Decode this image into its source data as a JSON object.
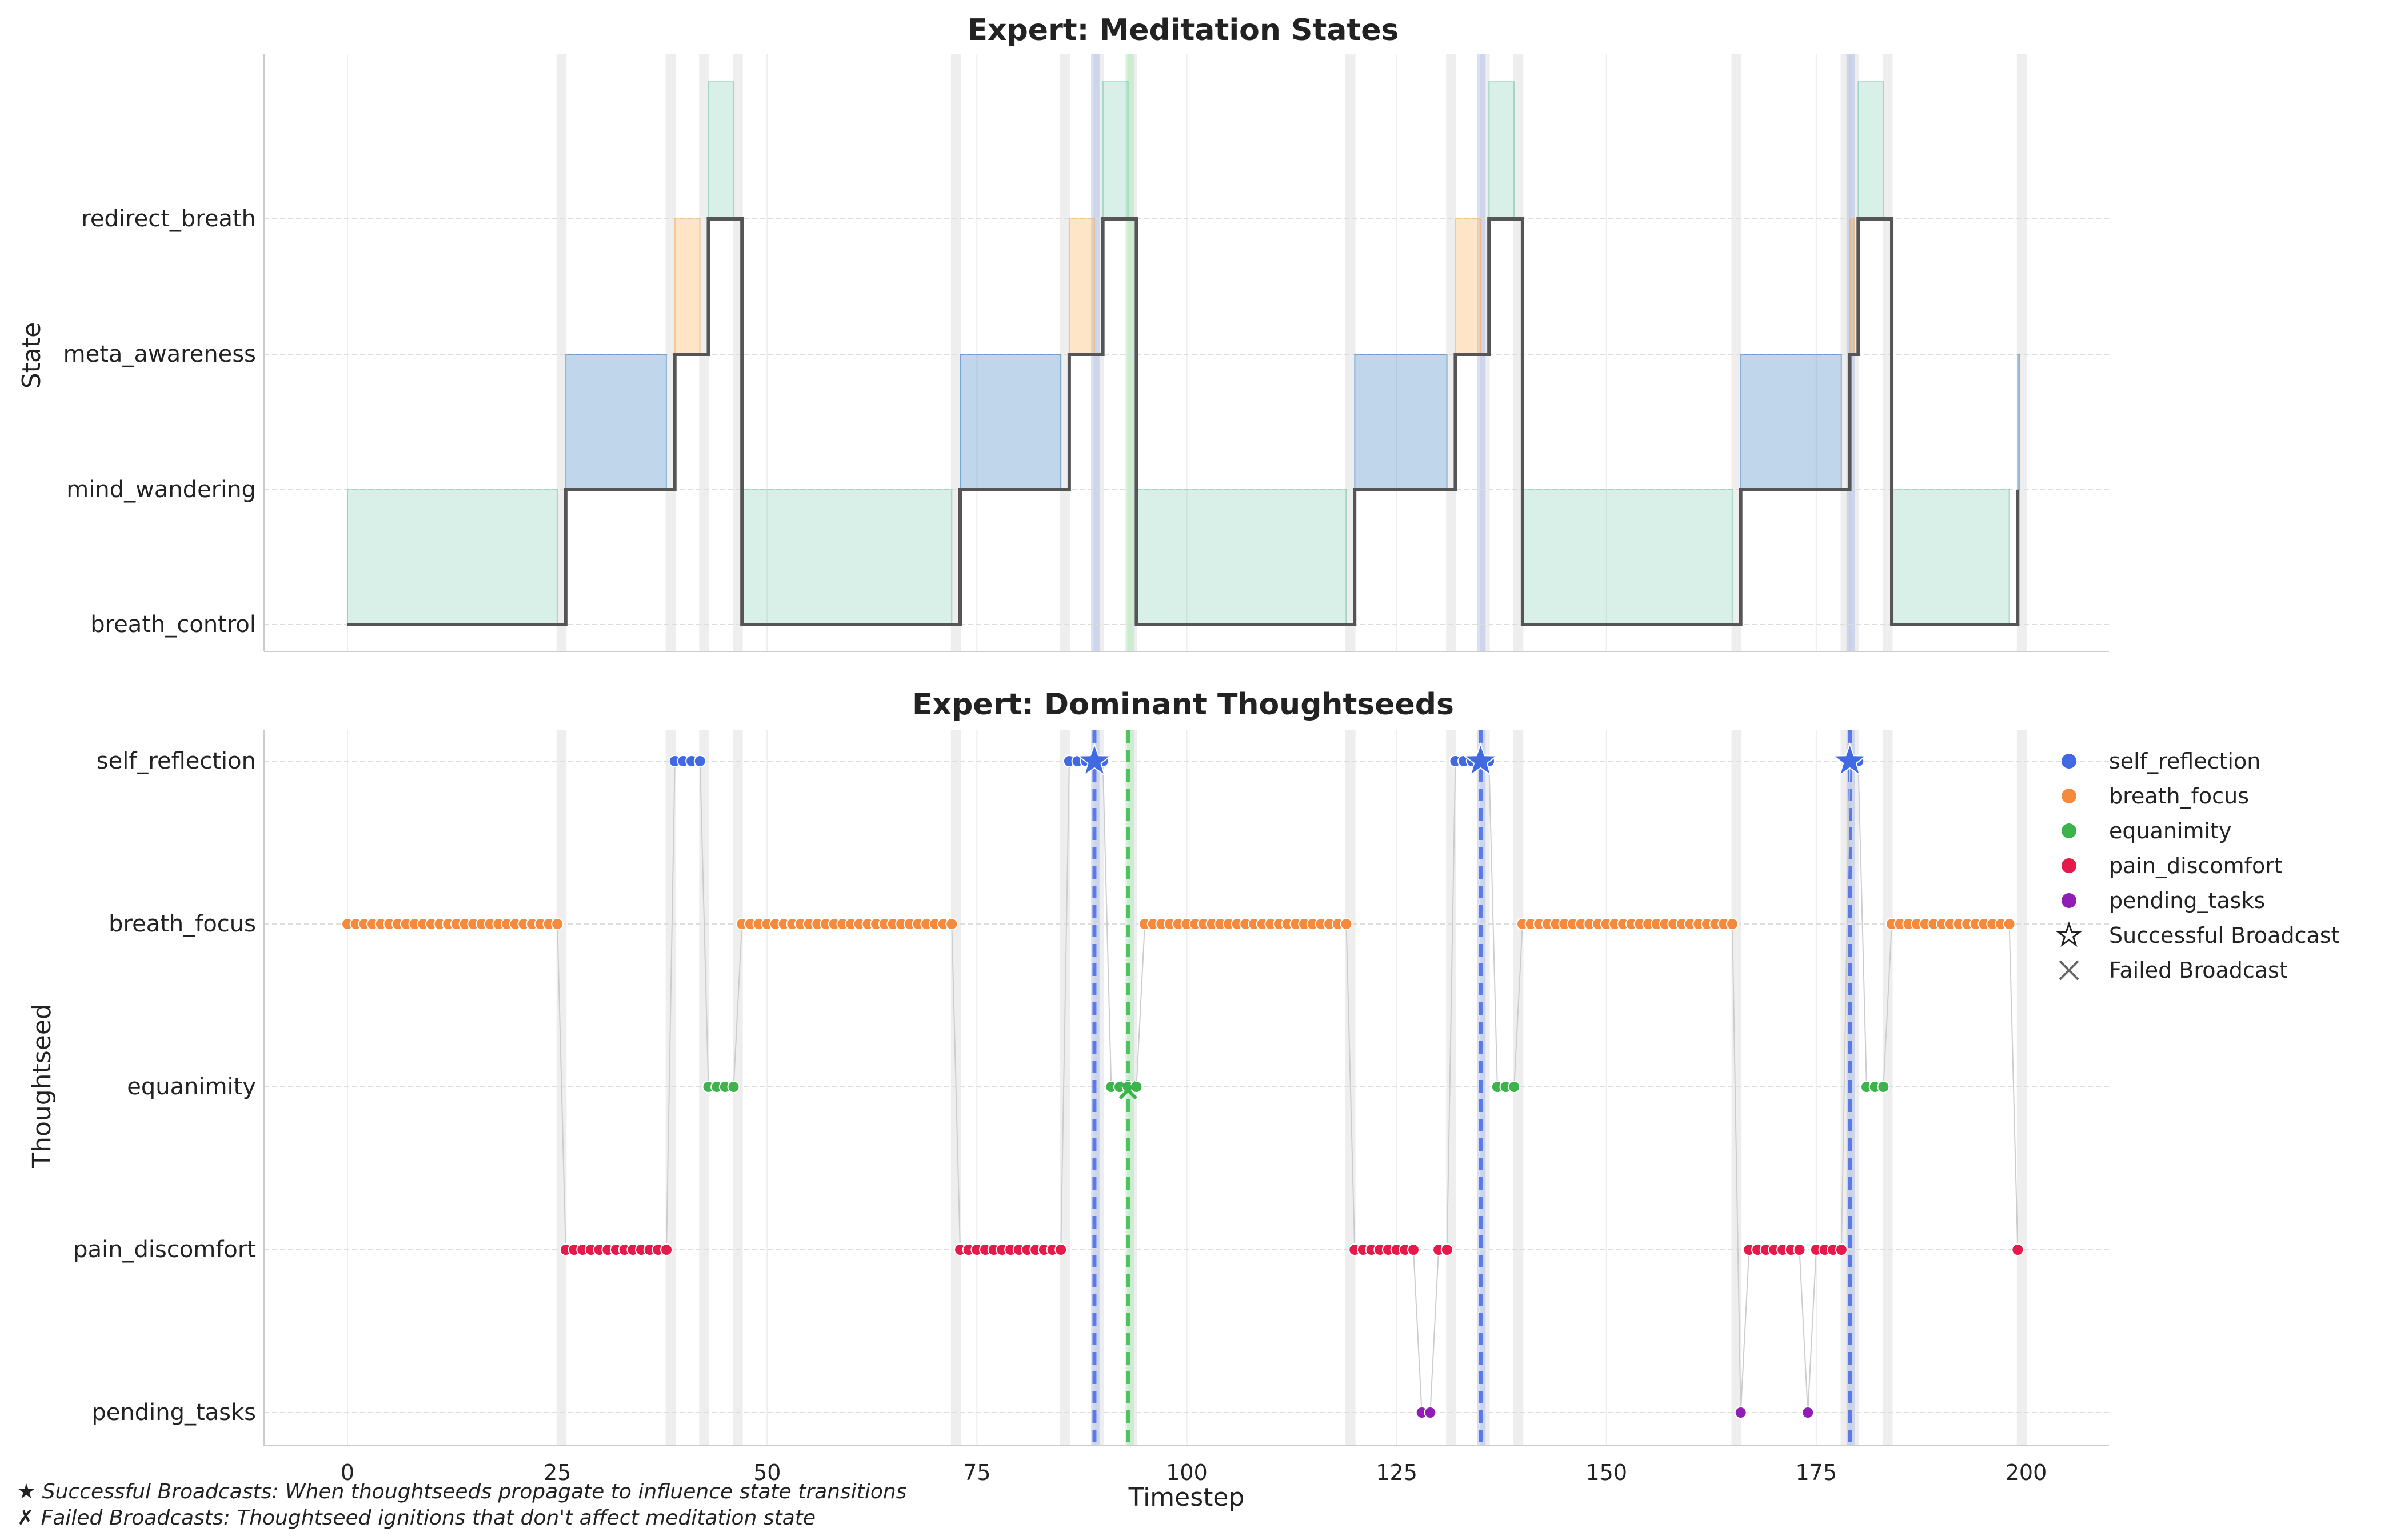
{
  "chart_data": [
    {
      "type": "line",
      "subtype": "step",
      "title": "Expert: Meditation States",
      "ylabel": "State",
      "xlabel": "",
      "xlim": [
        -10,
        210
      ],
      "xticks": [
        0,
        25,
        50,
        75,
        100,
        125,
        150,
        175,
        200
      ],
      "y_categories": [
        "breath_control",
        "mind_wandering",
        "meta_awareness",
        "redirect_breath"
      ],
      "grid": true,
      "segments": [
        {
          "state": "breath_control",
          "start": 0,
          "end": 26
        },
        {
          "state": "mind_wandering",
          "start": 26,
          "end": 39
        },
        {
          "state": "meta_awareness",
          "start": 39,
          "end": 43
        },
        {
          "state": "redirect_breath",
          "start": 43,
          "end": 47
        },
        {
          "state": "breath_control",
          "start": 47,
          "end": 73
        },
        {
          "state": "mind_wandering",
          "start": 73,
          "end": 86
        },
        {
          "state": "meta_awareness",
          "start": 86,
          "end": 90
        },
        {
          "state": "redirect_breath",
          "start": 90,
          "end": 94
        },
        {
          "state": "breath_control",
          "start": 94,
          "end": 120
        },
        {
          "state": "mind_wandering",
          "start": 120,
          "end": 132
        },
        {
          "state": "meta_awareness",
          "start": 132,
          "end": 136
        },
        {
          "state": "redirect_breath",
          "start": 136,
          "end": 140
        },
        {
          "state": "breath_control",
          "start": 140,
          "end": 166
        },
        {
          "state": "mind_wandering",
          "start": 166,
          "end": 179
        },
        {
          "state": "meta_awareness",
          "start": 179,
          "end": 180
        },
        {
          "state": "redirect_breath",
          "start": 180,
          "end": 184
        },
        {
          "state": "breath_control",
          "start": 184,
          "end": 199
        },
        {
          "state": "mind_wandering",
          "start": 199,
          "end": 199
        }
      ],
      "fill_boxes": [
        {
          "kind": "breath",
          "x0": 0,
          "x1": 25,
          "level": 1
        },
        {
          "kind": "wander",
          "x0": 26,
          "x1": 38,
          "level": 2
        },
        {
          "kind": "meta",
          "x0": 39,
          "x1": 42,
          "level": 3
        },
        {
          "kind": "redirect",
          "x0": 43,
          "x1": 46,
          "level": 4
        },
        {
          "kind": "breath",
          "x0": 47,
          "x1": 72,
          "level": 1
        },
        {
          "kind": "wander",
          "x0": 73,
          "x1": 85,
          "level": 2
        },
        {
          "kind": "meta",
          "x0": 86,
          "x1": 89,
          "level": 3
        },
        {
          "kind": "redirect",
          "x0": 90,
          "x1": 93,
          "level": 4
        },
        {
          "kind": "breath",
          "x0": 94,
          "x1": 119,
          "level": 1
        },
        {
          "kind": "wander",
          "x0": 120,
          "x1": 131,
          "level": 2
        },
        {
          "kind": "meta",
          "x0": 132,
          "x1": 135,
          "level": 3
        },
        {
          "kind": "redirect",
          "x0": 136,
          "x1": 139,
          "level": 4
        },
        {
          "kind": "breath",
          "x0": 140,
          "x1": 165,
          "level": 1
        },
        {
          "kind": "wander",
          "x0": 166,
          "x1": 178,
          "level": 2
        },
        {
          "kind": "meta",
          "x0": 179,
          "x1": 179.5,
          "level": 3
        },
        {
          "kind": "redirect",
          "x0": 180,
          "x1": 183,
          "level": 4
        },
        {
          "kind": "breath",
          "x0": 184,
          "x1": 198,
          "level": 1
        },
        {
          "kind": "wander",
          "x0": 199,
          "x1": 199.2,
          "level": 2
        }
      ],
      "transition_bands": [
        25.5,
        38.5,
        42.5,
        46.5,
        72.5,
        85.5,
        89.5,
        93.5,
        119.5,
        131.5,
        135.5,
        139.5,
        165.5,
        178.5,
        179.5,
        183.5,
        199.5
      ],
      "highlight_bands": [
        {
          "color": "blue",
          "x0": 88.6,
          "x1": 89.6
        },
        {
          "color": "green",
          "x0": 92.7,
          "x1": 93.7
        },
        {
          "color": "blue",
          "x0": 134.6,
          "x1": 135.6
        },
        {
          "color": "blue",
          "x0": 178.6,
          "x1": 179.6
        }
      ]
    },
    {
      "type": "scatter",
      "title": "Expert: Dominant Thoughtseeds",
      "ylabel": "Thoughtseed",
      "xlabel": "Timestep",
      "xlim": [
        -10,
        210
      ],
      "xticks": [
        0,
        25,
        50,
        75,
        100,
        125,
        150,
        175,
        200
      ],
      "y_categories": [
        "pending_tasks",
        "pain_discomfort",
        "equanimity",
        "breath_focus",
        "self_reflection"
      ],
      "grid": true,
      "legend": "upper-right-outside",
      "series": [
        {
          "name": "self_reflection",
          "color": "#4169e1",
          "x": [
            39,
            40,
            41,
            42,
            86,
            87,
            88,
            89,
            90,
            132,
            133,
            134,
            135,
            136,
            179,
            180
          ]
        },
        {
          "name": "breath_focus",
          "color": "#f5893c",
          "x": [
            0,
            1,
            2,
            3,
            4,
            5,
            6,
            7,
            8,
            9,
            10,
            11,
            12,
            13,
            14,
            15,
            16,
            17,
            18,
            19,
            20,
            21,
            22,
            23,
            24,
            25,
            47,
            48,
            49,
            50,
            51,
            52,
            53,
            54,
            55,
            56,
            57,
            58,
            59,
            60,
            61,
            62,
            63,
            64,
            65,
            66,
            67,
            68,
            69,
            70,
            71,
            72,
            95,
            96,
            97,
            98,
            99,
            100,
            101,
            102,
            103,
            104,
            105,
            106,
            107,
            108,
            109,
            110,
            111,
            112,
            113,
            114,
            115,
            116,
            117,
            118,
            119,
            140,
            141,
            142,
            143,
            144,
            145,
            146,
            147,
            148,
            149,
            150,
            151,
            152,
            153,
            154,
            155,
            156,
            157,
            158,
            159,
            160,
            161,
            162,
            163,
            164,
            165,
            184,
            185,
            186,
            187,
            188,
            189,
            190,
            191,
            192,
            193,
            194,
            195,
            196,
            197,
            198
          ]
        },
        {
          "name": "equanimity",
          "color": "#3cb44b",
          "x": [
            43,
            44,
            45,
            46,
            91,
            92,
            93,
            94,
            137,
            138,
            139,
            181,
            182,
            183
          ]
        },
        {
          "name": "pain_discomfort",
          "color": "#e6194b",
          "x": [
            26,
            27,
            28,
            29,
            30,
            31,
            32,
            33,
            34,
            35,
            36,
            37,
            38,
            73,
            74,
            75,
            76,
            77,
            78,
            79,
            80,
            81,
            82,
            83,
            84,
            85,
            120,
            121,
            122,
            123,
            124,
            125,
            126,
            127,
            130,
            131,
            167,
            168,
            169,
            170,
            171,
            172,
            173,
            175,
            176,
            177,
            178,
            199
          ]
        },
        {
          "name": "pending_tasks",
          "color": "#911eb4",
          "x": [
            128,
            129,
            166,
            174
          ]
        }
      ],
      "sequence": [
        [
          0,
          "breath_focus"
        ],
        [
          25,
          "breath_focus"
        ],
        [
          26,
          "pain_discomfort"
        ],
        [
          38,
          "pain_discomfort"
        ],
        [
          39,
          "self_reflection"
        ],
        [
          42,
          "self_reflection"
        ],
        [
          43,
          "equanimity"
        ],
        [
          46,
          "equanimity"
        ],
        [
          47,
          "breath_focus"
        ],
        [
          72,
          "breath_focus"
        ],
        [
          73,
          "pain_discomfort"
        ],
        [
          85,
          "pain_discomfort"
        ],
        [
          86,
          "self_reflection"
        ],
        [
          90,
          "self_reflection"
        ],
        [
          91,
          "equanimity"
        ],
        [
          94,
          "equanimity"
        ],
        [
          95,
          "breath_focus"
        ],
        [
          119,
          "breath_focus"
        ],
        [
          120,
          "pain_discomfort"
        ],
        [
          127,
          "pain_discomfort"
        ],
        [
          128,
          "pending_tasks"
        ],
        [
          129,
          "pending_tasks"
        ],
        [
          130,
          "pain_discomfort"
        ],
        [
          131,
          "pain_discomfort"
        ],
        [
          132,
          "self_reflection"
        ],
        [
          136,
          "self_reflection"
        ],
        [
          137,
          "equanimity"
        ],
        [
          139,
          "equanimity"
        ],
        [
          140,
          "breath_focus"
        ],
        [
          165,
          "breath_focus"
        ],
        [
          166,
          "pending_tasks"
        ],
        [
          167,
          "pain_discomfort"
        ],
        [
          173,
          "pain_discomfort"
        ],
        [
          174,
          "pending_tasks"
        ],
        [
          175,
          "pain_discomfort"
        ],
        [
          178,
          "pain_discomfort"
        ],
        [
          179,
          "self_reflection"
        ],
        [
          180,
          "self_reflection"
        ],
        [
          181,
          "equanimity"
        ],
        [
          183,
          "equanimity"
        ],
        [
          184,
          "breath_focus"
        ],
        [
          198,
          "breath_focus"
        ],
        [
          199,
          "pain_discomfort"
        ]
      ],
      "successful_broadcasts": [
        {
          "x": 89,
          "thoughtseed": "self_reflection"
        },
        {
          "x": 135,
          "thoughtseed": "self_reflection"
        },
        {
          "x": 179,
          "thoughtseed": "self_reflection"
        }
      ],
      "failed_broadcasts": [
        {
          "x": 93,
          "thoughtseed": "equanimity"
        }
      ],
      "broadcast_lines": [
        {
          "x": 89,
          "color": "blue"
        },
        {
          "x": 93,
          "color": "green"
        },
        {
          "x": 135,
          "color": "blue"
        },
        {
          "x": 179,
          "color": "blue"
        }
      ]
    }
  ],
  "legend": {
    "items": [
      {
        "label": "self_reflection",
        "marker": "dot",
        "color": "#4169e1"
      },
      {
        "label": "breath_focus",
        "marker": "dot",
        "color": "#f5893c"
      },
      {
        "label": "equanimity",
        "marker": "dot",
        "color": "#3cb44b"
      },
      {
        "label": "pain_discomfort",
        "marker": "dot",
        "color": "#e6194b"
      },
      {
        "label": "pending_tasks",
        "marker": "dot",
        "color": "#911eb4"
      },
      {
        "label": "Successful Broadcast",
        "marker": "star",
        "color": "#222222"
      },
      {
        "label": "Failed Broadcast",
        "marker": "x",
        "color": "#666666"
      }
    ]
  },
  "footnotes": {
    "success": "★ Successful Broadcasts: When thoughtseeds propagate to influence state transitions",
    "failed": "✗ Failed Broadcasts: Thoughtseed ignitions that don't affect meditation state"
  },
  "colors": {
    "breath_fill": "#66c2a5",
    "wander_fill": "#3c7fc0",
    "meta_fill": "#fba94a",
    "redirect_fill": "#66c2a5",
    "step_line": "#555555",
    "transition_band": "#d9d9d9",
    "blue_band": "#8fa6e6",
    "green_band": "#8fe6a0",
    "blue_line": "#5b7ae8",
    "green_line": "#4cc35c",
    "connector": "#cccccc",
    "grid": "#dddddd"
  }
}
